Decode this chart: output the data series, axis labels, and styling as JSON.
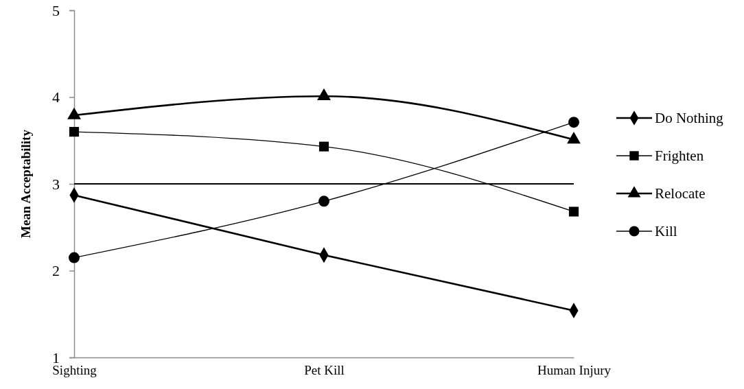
{
  "chart_data": {
    "type": "line",
    "ylabel": "Mean Acceptability",
    "categories": [
      "Sighting",
      "Pet Kill",
      "Human Injury"
    ],
    "series": [
      {
        "name": "Do Nothing",
        "color": "#000000",
        "marker": "diamond",
        "values": [
          2.87,
          2.18,
          1.54
        ]
      },
      {
        "name": "Frighten",
        "color": "#000000",
        "marker": "square",
        "values": [
          3.6,
          3.43,
          2.68
        ]
      },
      {
        "name": "Relocate",
        "color": "#000000",
        "marker": "triangle",
        "values": [
          3.79,
          4.01,
          3.51
        ]
      },
      {
        "name": "Kill",
        "color": "#000000",
        "marker": "circle",
        "values": [
          2.15,
          2.8,
          3.71
        ]
      }
    ],
    "ylim": [
      1,
      5
    ],
    "yticks": [
      1,
      2,
      3,
      4,
      5
    ],
    "grid": false,
    "legend": "right",
    "line_style": "solid",
    "ref_lines": [
      {
        "axis": "y",
        "value": 3,
        "color": "#000000"
      }
    ]
  }
}
